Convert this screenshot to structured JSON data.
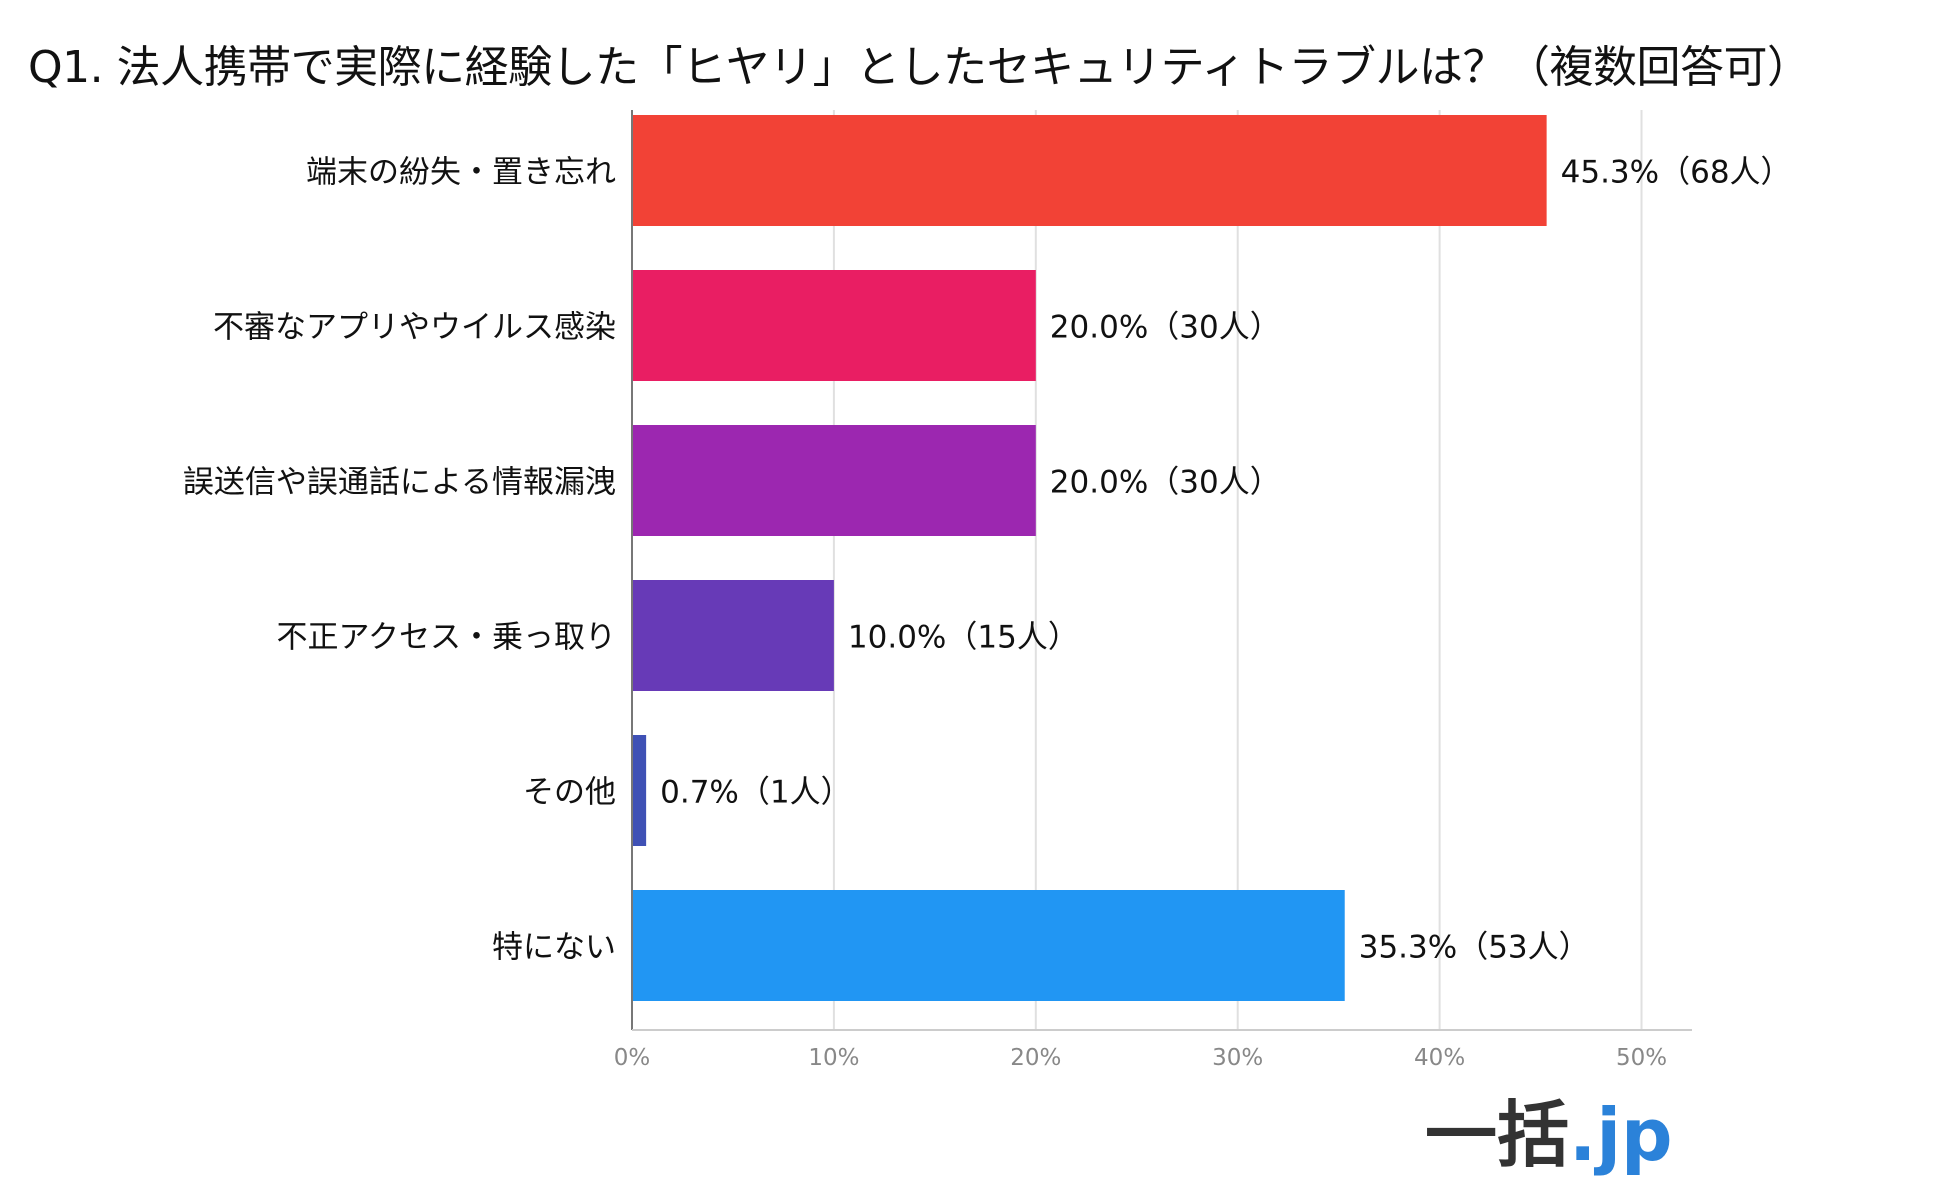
{
  "chart_data": {
    "type": "bar",
    "orientation": "horizontal",
    "title": "Q1. 法人携帯で実際に経験した「ヒヤリ」としたセキュリティトラブルは？（複数回答可）",
    "categories": [
      "端末の紛失・置き忘れ",
      "不審なアプリやウイルス感染",
      "誤送信や誤通話による情報漏洩",
      "不正アクセス・乗っ取り",
      "その他",
      "特にない"
    ],
    "values": [
      45.3,
      20.0,
      20.0,
      10.0,
      0.7,
      35.3
    ],
    "data_labels": [
      "45.3%（68人）",
      "20.0%（30人）",
      "20.0%（30人）",
      "10.0%（15人）",
      "0.7%（1人）",
      "35.3%（53人）"
    ],
    "colors": [
      "#f24236",
      "#e91e63",
      "#9c27b0",
      "#673ab7",
      "#3f51b5",
      "#2196f3"
    ],
    "xticks": [
      "0%",
      "10%",
      "20%",
      "30%",
      "40%",
      "50%"
    ],
    "xlim": [
      0,
      52.5
    ],
    "grid": true,
    "legend": "none"
  },
  "logo": {
    "main": "一括",
    "tld": ".jp"
  }
}
